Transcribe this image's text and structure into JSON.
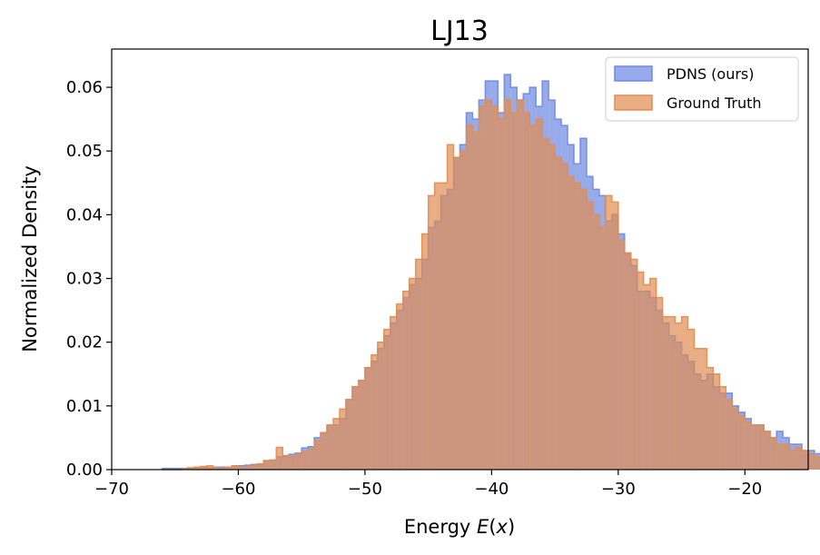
{
  "chart_data": {
    "type": "histogram",
    "title": "LJ13",
    "xlabel": "Energy E(x)",
    "ylabel": "Normalized Density",
    "xlim": [
      -70,
      -15
    ],
    "ylim": [
      0,
      0.066
    ],
    "xticks": [
      -70,
      -60,
      -50,
      -40,
      -30,
      -20
    ],
    "xtick_labels": [
      "−70",
      "−60",
      "−50",
      "−40",
      "−30",
      "−20"
    ],
    "yticks": [
      0.0,
      0.01,
      0.02,
      0.03,
      0.04,
      0.05,
      0.06
    ],
    "ytick_labels": [
      "0.00",
      "0.01",
      "0.02",
      "0.03",
      "0.04",
      "0.05",
      "0.06"
    ],
    "legend": {
      "position": "upper right"
    },
    "series": [
      {
        "name": "PDNS (ours)",
        "color": "#6b87e3",
        "edge_color": "#6b87e3",
        "bin_start": -66,
        "bin_width": 0.5,
        "values": [
          0.0002,
          0.0002,
          0.0002,
          0.0002,
          0.0002,
          0.0003,
          0.0003,
          0.0003,
          0.0004,
          0.0004,
          0.0004,
          0.0006,
          0.0006,
          0.0007,
          0.0008,
          0.0008,
          0.0014,
          0.0015,
          0.002,
          0.0022,
          0.0024,
          0.0026,
          0.0034,
          0.0036,
          0.005,
          0.0058,
          0.007,
          0.007,
          0.008,
          0.011,
          0.013,
          0.014,
          0.016,
          0.017,
          0.019,
          0.021,
          0.023,
          0.025,
          0.027,
          0.029,
          0.03,
          0.033,
          0.038,
          0.039,
          0.043,
          0.044,
          0.049,
          0.051,
          0.056,
          0.055,
          0.058,
          0.061,
          0.061,
          0.056,
          0.062,
          0.06,
          0.058,
          0.059,
          0.06,
          0.057,
          0.061,
          0.058,
          0.055,
          0.054,
          0.051,
          0.048,
          0.052,
          0.046,
          0.044,
          0.043,
          0.039,
          0.04,
          0.037,
          0.034,
          0.032,
          0.028,
          0.028,
          0.027,
          0.025,
          0.023,
          0.021,
          0.02,
          0.018,
          0.017,
          0.015,
          0.014,
          0.015,
          0.013,
          0.012,
          0.012,
          0.01,
          0.009,
          0.008,
          0.007,
          0.007,
          0.006,
          0.005,
          0.006,
          0.005,
          0.004,
          0.004,
          0.003,
          0.003,
          0.0025,
          0.0025,
          0.002,
          0.0018,
          0.0018,
          0.0015,
          0.0013,
          0.0013,
          0.0011,
          0.0011,
          0.0009,
          0.0008,
          0.0007,
          0.0007,
          0.0006,
          0.0005,
          0.0004,
          0.0004,
          0.0003,
          0.0003,
          0.0002,
          0.0002,
          0.0002,
          0.0001,
          0.0001
        ]
      },
      {
        "name": "Ground Truth",
        "color": "#e18c50",
        "edge_color": "#e18c50",
        "bin_start": -66,
        "bin_width": 0.5,
        "values": [
          0.0,
          0.0,
          0.0,
          0.0001,
          0.0003,
          0.0004,
          0.0005,
          0.0006,
          0.0003,
          0.0002,
          0.0004,
          0.0006,
          0.0003,
          0.0005,
          0.0007,
          0.0009,
          0.0014,
          0.0015,
          0.0035,
          0.0022,
          0.002,
          0.0025,
          0.0028,
          0.0032,
          0.0045,
          0.0058,
          0.007,
          0.008,
          0.0095,
          0.011,
          0.013,
          0.014,
          0.016,
          0.018,
          0.02,
          0.022,
          0.024,
          0.026,
          0.028,
          0.03,
          0.033,
          0.037,
          0.043,
          0.045,
          0.045,
          0.051,
          0.049,
          0.05,
          0.054,
          0.053,
          0.057,
          0.058,
          0.057,
          0.055,
          0.058,
          0.056,
          0.058,
          0.056,
          0.054,
          0.055,
          0.052,
          0.051,
          0.049,
          0.048,
          0.046,
          0.045,
          0.044,
          0.042,
          0.04,
          0.038,
          0.043,
          0.042,
          0.036,
          0.034,
          0.033,
          0.031,
          0.029,
          0.03,
          0.027,
          0.024,
          0.024,
          0.023,
          0.024,
          0.022,
          0.019,
          0.019,
          0.016,
          0.015,
          0.013,
          0.011,
          0.0095,
          0.0085,
          0.0075,
          0.007,
          0.007,
          0.006,
          0.005,
          0.004,
          0.004,
          0.003,
          0.0035,
          0.003,
          0.0025,
          0.002,
          0.002,
          0.0018,
          0.0018,
          0.0015,
          0.0015,
          0.0012,
          0.001,
          0.0009,
          0.0009,
          0.0007,
          0.0007,
          0.0006,
          0.0005,
          0.0005,
          0.0004,
          0.0004,
          0.0003,
          0.0003,
          0.0002,
          0.0002,
          0.0001,
          0.0001,
          0.0001
        ]
      }
    ],
    "overlap_color": "#c08e80"
  }
}
